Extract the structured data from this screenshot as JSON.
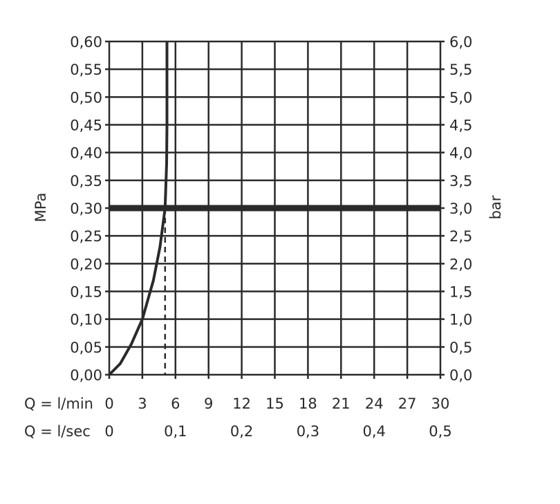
{
  "chart_data": {
    "type": "line",
    "ylabel_left": "MPa",
    "ylabel_right": "bar",
    "ylim": [
      0,
      0.6
    ],
    "xlim": [
      0,
      30
    ],
    "y_ticks_left": [
      "0,00",
      "0,05",
      "0,10",
      "0,15",
      "0,20",
      "0,25",
      "0,30",
      "0,35",
      "0,40",
      "0,45",
      "0,50",
      "0,55",
      "0,60"
    ],
    "y_ticks_right": [
      "0,0",
      "0,5",
      "1,0",
      "1,5",
      "2,0",
      "2,5",
      "3,0",
      "3,5",
      "4,0",
      "4,5",
      "5,0",
      "5,5",
      "6,0"
    ],
    "x_row1_label": "Q = l/min",
    "x_ticks_lmin": [
      "0",
      "3",
      "6",
      "9",
      "12",
      "15",
      "18",
      "21",
      "24",
      "27",
      "30"
    ],
    "x_row2_label": "Q = l/sec",
    "x_ticks_lsec": [
      {
        "v": 0,
        "t": "0"
      },
      {
        "v": 6,
        "t": "0,1"
      },
      {
        "v": 12,
        "t": "0,2"
      },
      {
        "v": 18,
        "t": "0,3"
      },
      {
        "v": 24,
        "t": "0,4"
      },
      {
        "v": 30,
        "t": "0,5"
      }
    ],
    "grid": true,
    "series": [
      {
        "points": [
          [
            0,
            0
          ],
          [
            1,
            0.02
          ],
          [
            2,
            0.055
          ],
          [
            3,
            0.1
          ],
          [
            4,
            0.17
          ],
          [
            4.6,
            0.23
          ],
          [
            5.06,
            0.3
          ],
          [
            5.2,
            0.38
          ],
          [
            5.23,
            0.45
          ],
          [
            5.23,
            0.6
          ]
        ]
      }
    ],
    "reference_line_y": 0.3,
    "dashed_drop_x": 5.06,
    "colors": {
      "ink": "#2a2a2a"
    }
  }
}
